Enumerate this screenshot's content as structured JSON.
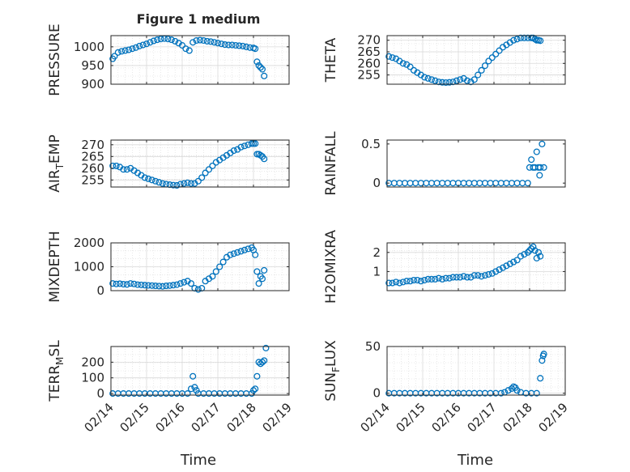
{
  "figure": {
    "title": "Figure 1 medium",
    "xlabel": "Time",
    "xticks": [
      "02/14",
      "02/15",
      "02/16",
      "02/17",
      "02/18",
      "02/19"
    ]
  },
  "colors": {
    "marker": "#0072BD",
    "axis": "#262626",
    "grid": "#d9d9d9",
    "background": "#ffffff"
  },
  "chart_data": [
    {
      "type": "scatter",
      "ylabel": "PRESSURE",
      "ylabel_sub": "",
      "ylabel_tail": "",
      "xlim": [
        "02/14",
        "02/19"
      ],
      "ylim": [
        900,
        1030
      ],
      "yticks": [
        900,
        950,
        1000
      ],
      "grid": true,
      "series": [
        {
          "x": [
            0.05,
            0.1,
            0.2,
            0.3,
            0.4,
            0.5,
            0.6,
            0.7,
            0.8,
            0.9,
            1.0,
            1.1,
            1.2,
            1.3,
            1.4,
            1.5,
            1.6,
            1.7,
            1.8,
            1.9,
            2.0,
            2.1,
            2.2,
            2.3,
            2.4,
            2.5,
            2.6,
            2.7,
            2.8,
            2.9,
            3.0,
            3.1,
            3.2,
            3.3,
            3.4,
            3.5,
            3.6,
            3.7,
            3.8,
            3.9,
            4.0,
            4.05,
            4.1,
            4.15,
            4.2,
            4.25,
            4.3
          ],
          "y": [
            968,
            975,
            985,
            988,
            990,
            992,
            995,
            998,
            1002,
            1005,
            1008,
            1012,
            1016,
            1019,
            1021,
            1022,
            1021,
            1019,
            1015,
            1010,
            1004,
            995,
            990,
            1012,
            1017,
            1018,
            1017,
            1015,
            1014,
            1012,
            1010,
            1008,
            1006,
            1005,
            1005,
            1004,
            1003,
            1002,
            1000,
            998,
            997,
            995,
            960,
            950,
            945,
            940,
            922
          ]
        }
      ]
    },
    {
      "type": "scatter",
      "ylabel": "THETA",
      "ylabel_sub": "",
      "ylabel_tail": "",
      "xlim": [
        "02/14",
        "02/19"
      ],
      "ylim": [
        251,
        272
      ],
      "yticks": [
        255,
        260,
        265,
        270
      ],
      "grid": true,
      "series": [
        {
          "x": [
            0.05,
            0.15,
            0.25,
            0.35,
            0.45,
            0.55,
            0.65,
            0.75,
            0.85,
            0.95,
            1.05,
            1.15,
            1.25,
            1.35,
            1.45,
            1.55,
            1.65,
            1.75,
            1.85,
            1.95,
            2.05,
            2.15,
            2.25,
            2.35,
            2.45,
            2.55,
            2.65,
            2.75,
            2.85,
            2.95,
            3.05,
            3.15,
            3.25,
            3.35,
            3.45,
            3.55,
            3.65,
            3.75,
            3.85,
            3.95,
            4.05,
            4.1,
            4.15,
            4.2,
            4.25,
            4.3
          ],
          "y": [
            263,
            262.5,
            262,
            261,
            260,
            259.5,
            258.5,
            257,
            256,
            255,
            254,
            253.5,
            253,
            252.5,
            252,
            251.8,
            251.7,
            251.8,
            252,
            252.5,
            253,
            253.5,
            252.5,
            252,
            253,
            255,
            257,
            259,
            261,
            262.5,
            264,
            265.5,
            267,
            268,
            269,
            270,
            270.5,
            271,
            271,
            271,
            271,
            271,
            270.5,
            270,
            270,
            269.8
          ]
        }
      ]
    },
    {
      "type": "scatter",
      "ylabel": "AIR",
      "ylabel_sub": "T",
      "ylabel_tail": "EMP",
      "xlim": [
        "02/14",
        "02/19"
      ],
      "ylim": [
        252,
        272
      ],
      "yticks": [
        255,
        260,
        265,
        270
      ],
      "grid": true,
      "series": [
        {
          "x": [
            0.05,
            0.15,
            0.25,
            0.35,
            0.45,
            0.55,
            0.65,
            0.75,
            0.85,
            0.95,
            1.05,
            1.15,
            1.25,
            1.35,
            1.45,
            1.55,
            1.65,
            1.75,
            1.85,
            1.95,
            2.05,
            2.15,
            2.25,
            2.35,
            2.45,
            2.55,
            2.65,
            2.75,
            2.85,
            2.95,
            3.05,
            3.15,
            3.25,
            3.35,
            3.45,
            3.55,
            3.65,
            3.75,
            3.85,
            3.95,
            4.0,
            4.05,
            4.1,
            4.15,
            4.2,
            4.25,
            4.3
          ],
          "y": [
            261,
            261,
            260.5,
            259.5,
            259.5,
            260,
            259,
            258,
            257,
            256,
            255.5,
            255,
            254.5,
            254,
            253.5,
            253.2,
            253,
            252.8,
            252.7,
            253.2,
            253.5,
            253.8,
            253.5,
            253.5,
            254.5,
            256,
            258,
            259.5,
            261,
            262.5,
            263.5,
            264.5,
            265.5,
            266.5,
            267.5,
            268,
            269,
            269.5,
            270,
            270.5,
            270.5,
            270.5,
            266,
            266,
            265.5,
            265,
            264
          ]
        }
      ]
    },
    {
      "type": "scatter",
      "ylabel": "RAINFALL",
      "ylabel_sub": "",
      "ylabel_tail": "",
      "xlim": [
        "02/14",
        "02/19"
      ],
      "ylim": [
        -0.05,
        0.55
      ],
      "yticks": [
        0,
        0.5
      ],
      "grid": false,
      "series": [
        {
          "x": [
            0.05,
            0.2,
            0.35,
            0.5,
            0.65,
            0.8,
            0.95,
            1.1,
            1.25,
            1.4,
            1.55,
            1.7,
            1.85,
            2.0,
            2.15,
            2.3,
            2.45,
            2.6,
            2.75,
            2.9,
            3.05,
            3.2,
            3.35,
            3.5,
            3.65,
            3.8,
            3.95,
            4.0,
            4.05,
            4.1,
            4.15,
            4.2,
            4.25,
            4.28,
            4.3,
            4.35,
            4.4
          ],
          "y": [
            0,
            0,
            0,
            0,
            0,
            0,
            0,
            0,
            0,
            0,
            0,
            0,
            0,
            0,
            0,
            0,
            0,
            0,
            0,
            0,
            0,
            0,
            0,
            0,
            0,
            0,
            0,
            0.2,
            0.3,
            0.2,
            0.2,
            0.4,
            0.2,
            0.1,
            0.2,
            0.5,
            0.2
          ]
        }
      ]
    },
    {
      "type": "scatter",
      "ylabel": "MIXDEPTH",
      "ylabel_sub": "",
      "ylabel_tail": "",
      "xlim": [
        "02/14",
        "02/19"
      ],
      "ylim": [
        0,
        2000
      ],
      "yticks": [
        0,
        1000,
        2000
      ],
      "grid": true,
      "series": [
        {
          "x": [
            0.05,
            0.15,
            0.25,
            0.35,
            0.45,
            0.55,
            0.65,
            0.75,
            0.85,
            0.95,
            1.05,
            1.15,
            1.25,
            1.35,
            1.45,
            1.55,
            1.65,
            1.75,
            1.85,
            1.95,
            2.05,
            2.15,
            2.25,
            2.35,
            2.45,
            2.55,
            2.65,
            2.75,
            2.85,
            2.95,
            3.05,
            3.15,
            3.25,
            3.35,
            3.45,
            3.55,
            3.65,
            3.75,
            3.85,
            3.95,
            4.0,
            4.05,
            4.1,
            4.15,
            4.2,
            4.25,
            4.3
          ],
          "y": [
            300,
            280,
            290,
            270,
            260,
            300,
            280,
            250,
            240,
            230,
            220,
            210,
            200,
            190,
            180,
            200,
            210,
            230,
            250,
            300,
            350,
            400,
            300,
            100,
            50,
            100,
            400,
            500,
            600,
            800,
            1000,
            1200,
            1400,
            1500,
            1550,
            1600,
            1650,
            1700,
            1750,
            1800,
            1700,
            1500,
            800,
            300,
            600,
            500,
            850
          ]
        }
      ]
    },
    {
      "type": "scatter",
      "ylabel": "H2OMIXRA",
      "ylabel_sub": "",
      "ylabel_tail": "",
      "xlim": [
        "02/14",
        "02/19"
      ],
      "ylim": [
        0,
        2.5
      ],
      "yticks": [
        1,
        2
      ],
      "grid": true,
      "series": [
        {
          "x": [
            0.05,
            0.15,
            0.25,
            0.35,
            0.45,
            0.55,
            0.65,
            0.75,
            0.85,
            0.95,
            1.05,
            1.15,
            1.25,
            1.35,
            1.45,
            1.55,
            1.65,
            1.75,
            1.85,
            1.95,
            2.05,
            2.15,
            2.25,
            2.35,
            2.45,
            2.55,
            2.65,
            2.75,
            2.85,
            2.95,
            3.05,
            3.15,
            3.25,
            3.35,
            3.45,
            3.55,
            3.65,
            3.75,
            3.85,
            3.95,
            4.0,
            4.05,
            4.1,
            4.15,
            4.2,
            4.25,
            4.3
          ],
          "y": [
            0.4,
            0.4,
            0.45,
            0.4,
            0.45,
            0.5,
            0.5,
            0.55,
            0.55,
            0.5,
            0.55,
            0.6,
            0.6,
            0.6,
            0.65,
            0.6,
            0.65,
            0.65,
            0.7,
            0.7,
            0.7,
            0.75,
            0.7,
            0.7,
            0.8,
            0.8,
            0.75,
            0.8,
            0.85,
            0.9,
            1.0,
            1.1,
            1.2,
            1.3,
            1.4,
            1.5,
            1.6,
            1.8,
            1.9,
            2.0,
            2.1,
            2.2,
            2.3,
            2.1,
            1.7,
            2.0,
            1.8
          ]
        }
      ]
    },
    {
      "type": "scatter",
      "ylabel": "TERR",
      "ylabel_sub": "M",
      "ylabel_tail": "SL",
      "xlim": [
        "02/14",
        "02/19"
      ],
      "ylim": [
        -10,
        300
      ],
      "yticks": [
        0,
        100,
        200
      ],
      "grid": true,
      "series": [
        {
          "x": [
            0.05,
            0.2,
            0.35,
            0.5,
            0.65,
            0.8,
            0.95,
            1.1,
            1.25,
            1.4,
            1.55,
            1.7,
            1.85,
            2.0,
            2.15,
            2.25,
            2.3,
            2.35,
            2.4,
            2.45,
            2.6,
            2.75,
            2.9,
            3.05,
            3.2,
            3.35,
            3.5,
            3.65,
            3.8,
            3.95,
            4.0,
            4.05,
            4.1,
            4.15,
            4.2,
            4.25,
            4.3,
            4.35
          ],
          "y": [
            0,
            0,
            0,
            0,
            0,
            0,
            0,
            0,
            0,
            0,
            0,
            0,
            0,
            0,
            0,
            30,
            110,
            40,
            20,
            0,
            0,
            0,
            0,
            0,
            0,
            0,
            0,
            0,
            0,
            0,
            20,
            30,
            110,
            200,
            190,
            200,
            210,
            290
          ]
        }
      ]
    },
    {
      "type": "scatter",
      "ylabel": "SUN",
      "ylabel_sub": "F",
      "ylabel_tail": "LUX",
      "xlim": [
        "02/14",
        "02/19"
      ],
      "ylim": [
        -2,
        50
      ],
      "yticks": [
        0,
        50
      ],
      "grid": true,
      "series": [
        {
          "x": [
            0.05,
            0.2,
            0.35,
            0.5,
            0.65,
            0.8,
            0.95,
            1.1,
            1.25,
            1.4,
            1.55,
            1.7,
            1.85,
            2.0,
            2.15,
            2.3,
            2.45,
            2.6,
            2.75,
            2.9,
            3.05,
            3.2,
            3.3,
            3.4,
            3.5,
            3.55,
            3.6,
            3.65,
            3.75,
            3.9,
            4.05,
            4.2,
            4.3,
            4.35,
            4.38,
            4.4
          ],
          "y": [
            0,
            0,
            0,
            0,
            0,
            0,
            0,
            0,
            0,
            0,
            0,
            0,
            0,
            0,
            0,
            0,
            0,
            0,
            0,
            0,
            0,
            0,
            1,
            3,
            5,
            7,
            6,
            3,
            1,
            0,
            0,
            0,
            16,
            35,
            40,
            42
          ]
        }
      ]
    }
  ]
}
